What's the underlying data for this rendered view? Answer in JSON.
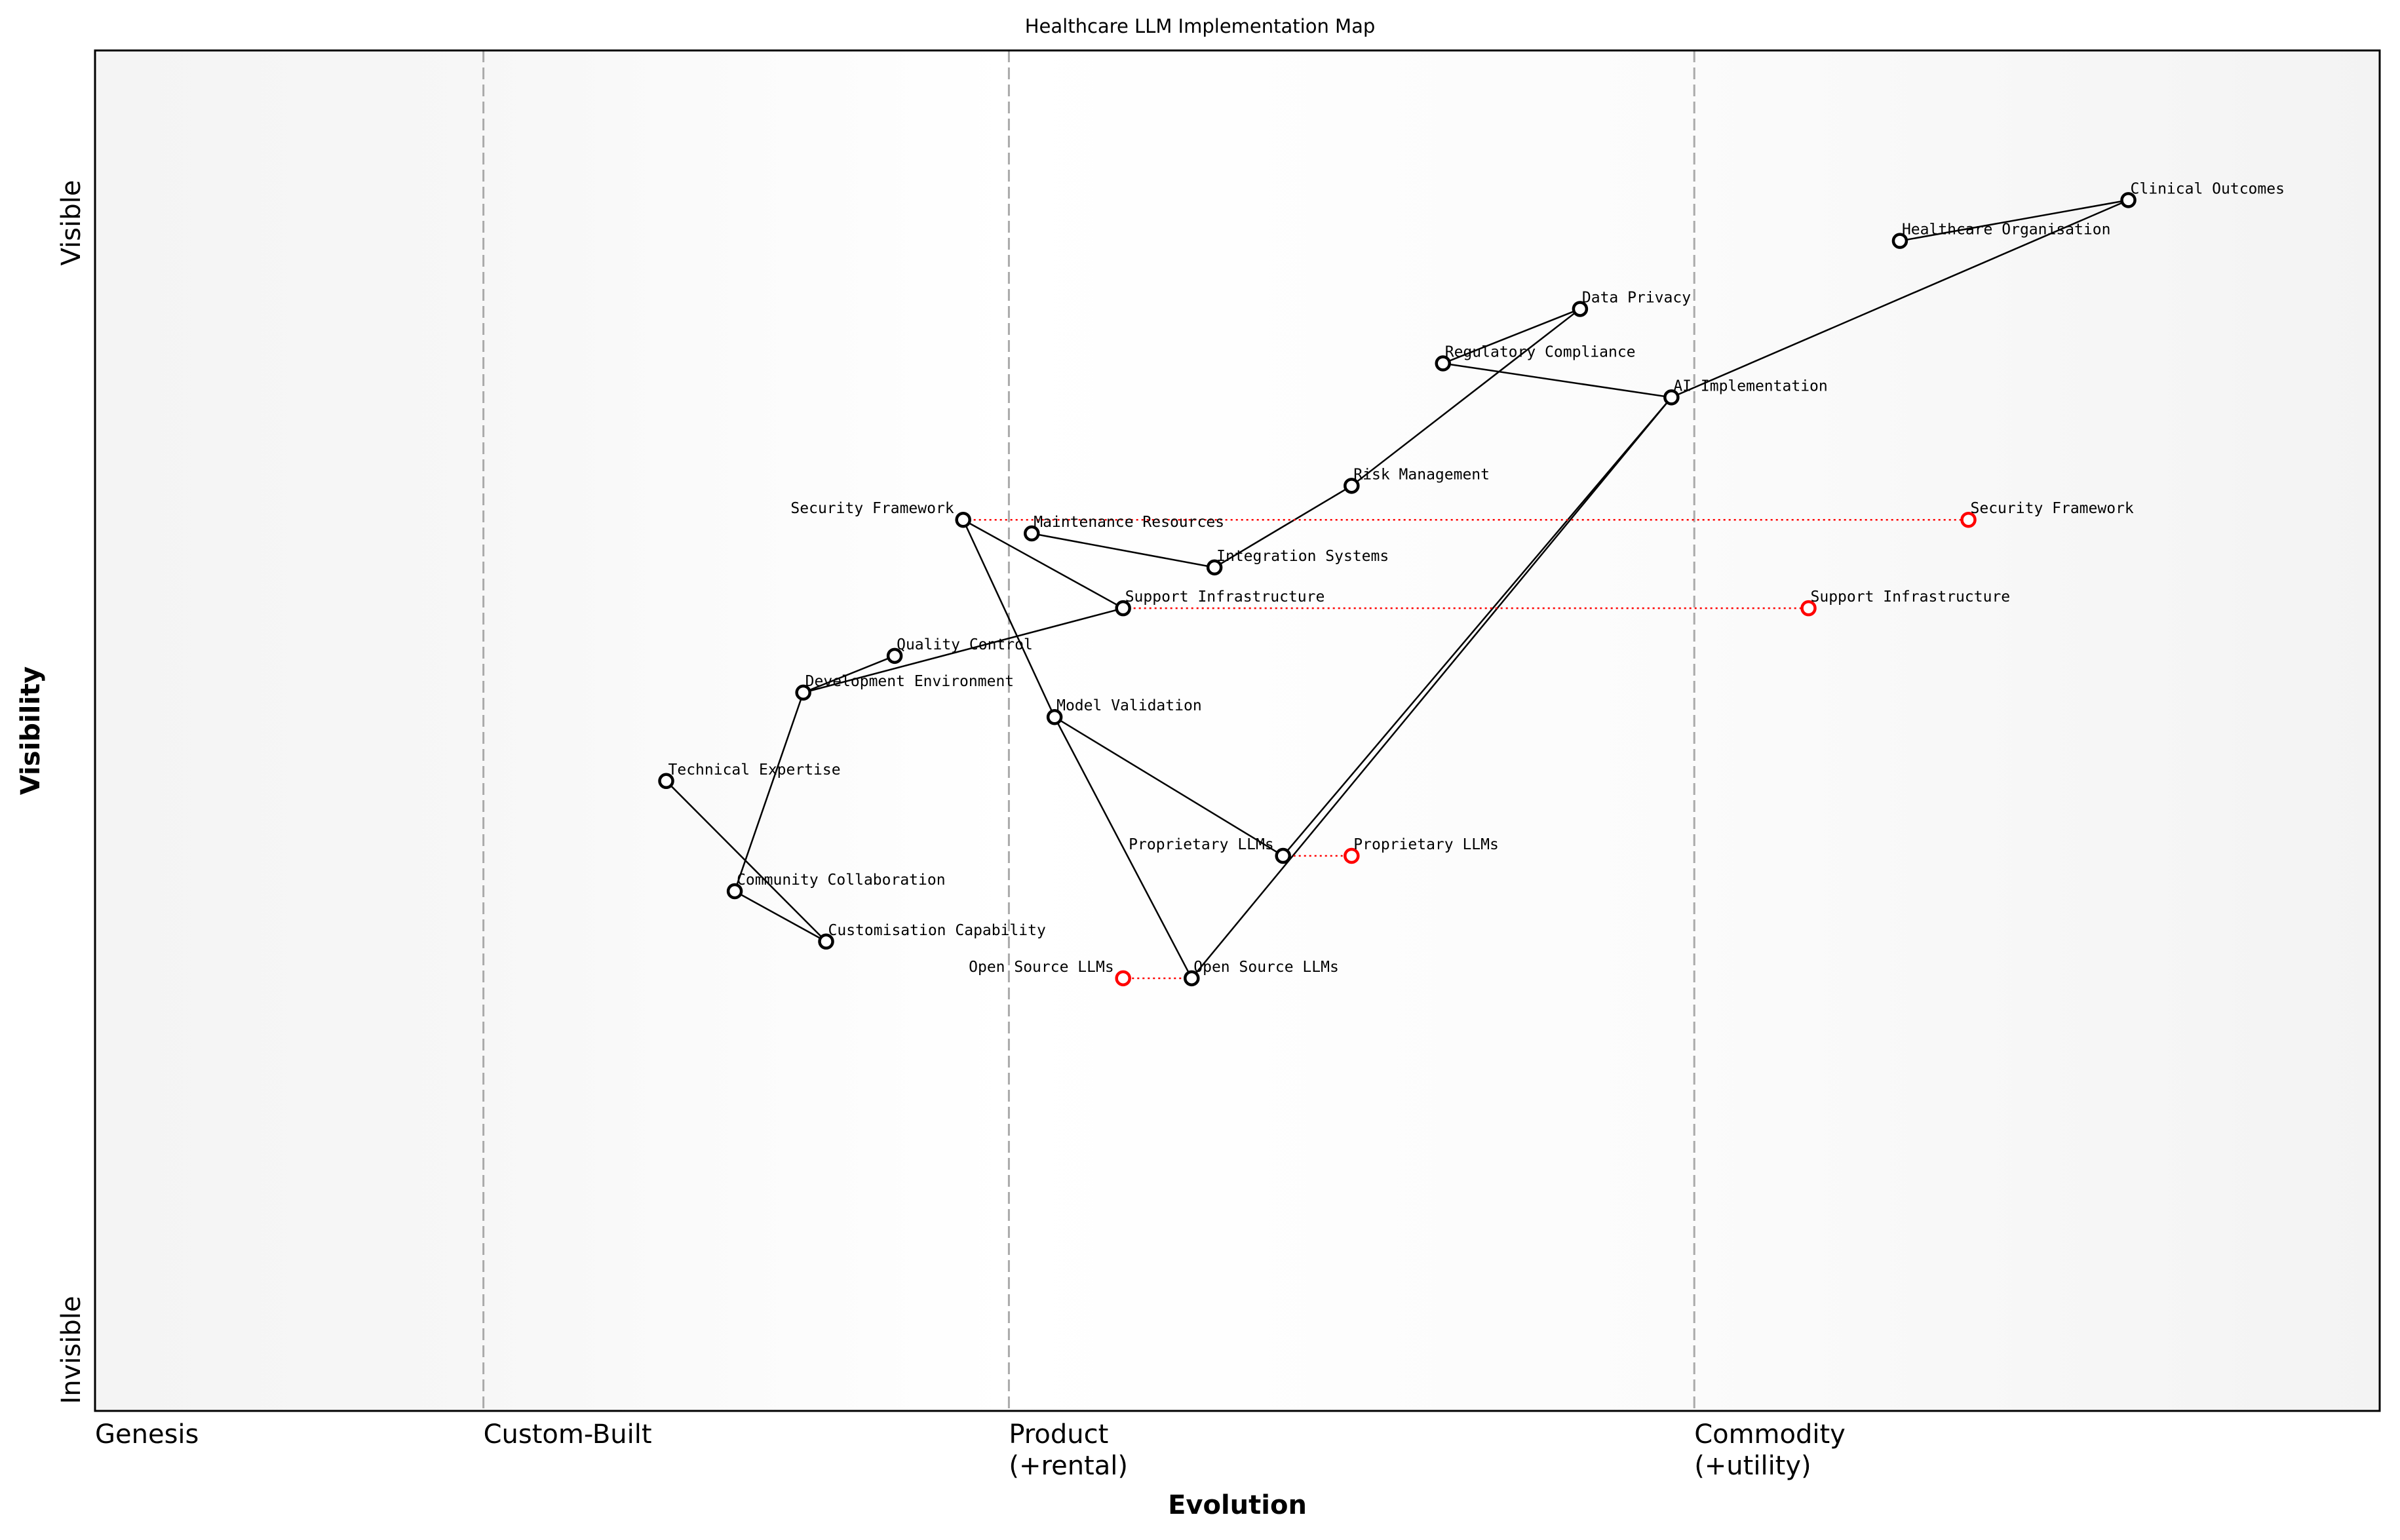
{
  "title": "Healthcare LLM Implementation Map",
  "x_axis": {
    "label": "Evolution",
    "stages": [
      {
        "name": "Genesis",
        "line1": "Genesis",
        "line2": "",
        "at": 0
      },
      {
        "name": "Custom-Built",
        "line1": "Custom-Built",
        "line2": "",
        "at": 0.17
      },
      {
        "name": "Product",
        "line1": "Product",
        "line2": "(+rental)",
        "at": 0.4
      },
      {
        "name": "Commodity",
        "line1": "Commodity",
        "line2": "(+utility)",
        "at": 0.7
      }
    ]
  },
  "y_axis": {
    "label": "Visibility",
    "top": "Visible",
    "bottom": "Invisible"
  },
  "chart_data": {
    "type": "wardley-map",
    "xlim": [
      0,
      1
    ],
    "ylim": [
      0,
      1
    ],
    "components": [
      {
        "name": "Clinical Outcomes",
        "evolution": 0.89,
        "visibility": 0.89
      },
      {
        "name": "Healthcare Organisation",
        "evolution": 0.79,
        "visibility": 0.86
      },
      {
        "name": "Data Privacy",
        "evolution": 0.65,
        "visibility": 0.81
      },
      {
        "name": "Regulatory Compliance",
        "evolution": 0.59,
        "visibility": 0.77
      },
      {
        "name": "AI Implementation",
        "evolution": 0.69,
        "visibility": 0.745
      },
      {
        "name": "Risk Management",
        "evolution": 0.55,
        "visibility": 0.68
      },
      {
        "name": "Security Framework",
        "evolution": 0.38,
        "visibility": 0.655
      },
      {
        "name": "Maintenance Resources",
        "evolution": 0.41,
        "visibility": 0.645
      },
      {
        "name": "Integration Systems",
        "evolution": 0.49,
        "visibility": 0.62
      },
      {
        "name": "Support Infrastructure",
        "evolution": 0.45,
        "visibility": 0.59
      },
      {
        "name": "Quality Control",
        "evolution": 0.35,
        "visibility": 0.555
      },
      {
        "name": "Development Environment",
        "evolution": 0.31,
        "visibility": 0.528
      },
      {
        "name": "Model Validation",
        "evolution": 0.42,
        "visibility": 0.51
      },
      {
        "name": "Technical Expertise",
        "evolution": 0.25,
        "visibility": 0.463
      },
      {
        "name": "Proprietary LLMs",
        "evolution": 0.52,
        "visibility": 0.408
      },
      {
        "name": "Community Collaboration",
        "evolution": 0.28,
        "visibility": 0.382
      },
      {
        "name": "Customisation Capability",
        "evolution": 0.32,
        "visibility": 0.345
      },
      {
        "name": "Open Source LLMs",
        "evolution": 0.48,
        "visibility": 0.318
      }
    ],
    "evolved": [
      {
        "name": "Security Framework",
        "evolution": 0.82,
        "visibility": 0.655
      },
      {
        "name": "Support Infrastructure",
        "evolution": 0.75,
        "visibility": 0.59
      },
      {
        "name": "Proprietary LLMs",
        "evolution": 0.55,
        "visibility": 0.408
      },
      {
        "name": "Open Source LLMs",
        "evolution": 0.45,
        "visibility": 0.318
      }
    ],
    "links": [
      [
        "Clinical Outcomes",
        "Healthcare Organisation"
      ],
      [
        "Clinical Outcomes",
        "AI Implementation"
      ],
      [
        "AI Implementation",
        "Regulatory Compliance"
      ],
      [
        "Regulatory Compliance",
        "Data Privacy"
      ],
      [
        "Data Privacy",
        "Risk Management"
      ],
      [
        "Risk Management",
        "Integration Systems"
      ],
      [
        "Integration Systems",
        "Maintenance Resources"
      ],
      [
        "AI Implementation",
        "Proprietary LLMs"
      ],
      [
        "AI Implementation",
        "Open Source LLMs"
      ],
      [
        "Security Framework",
        "Support Infrastructure"
      ],
      [
        "Security Framework",
        "Model Validation"
      ],
      [
        "Model Validation",
        "Open Source LLMs"
      ],
      [
        "Model Validation",
        "Proprietary LLMs"
      ],
      [
        "Support Infrastructure",
        "Development Environment"
      ],
      [
        "Development Environment",
        "Quality Control"
      ],
      [
        "Development Environment",
        "Community Collaboration"
      ],
      [
        "Community Collaboration",
        "Customisation Capability"
      ],
      [
        "Technical Expertise",
        "Customisation Capability"
      ]
    ],
    "colors": {
      "component": "#000000",
      "evolved": "#ff0000",
      "stage_line": "#aaaaaa"
    }
  }
}
